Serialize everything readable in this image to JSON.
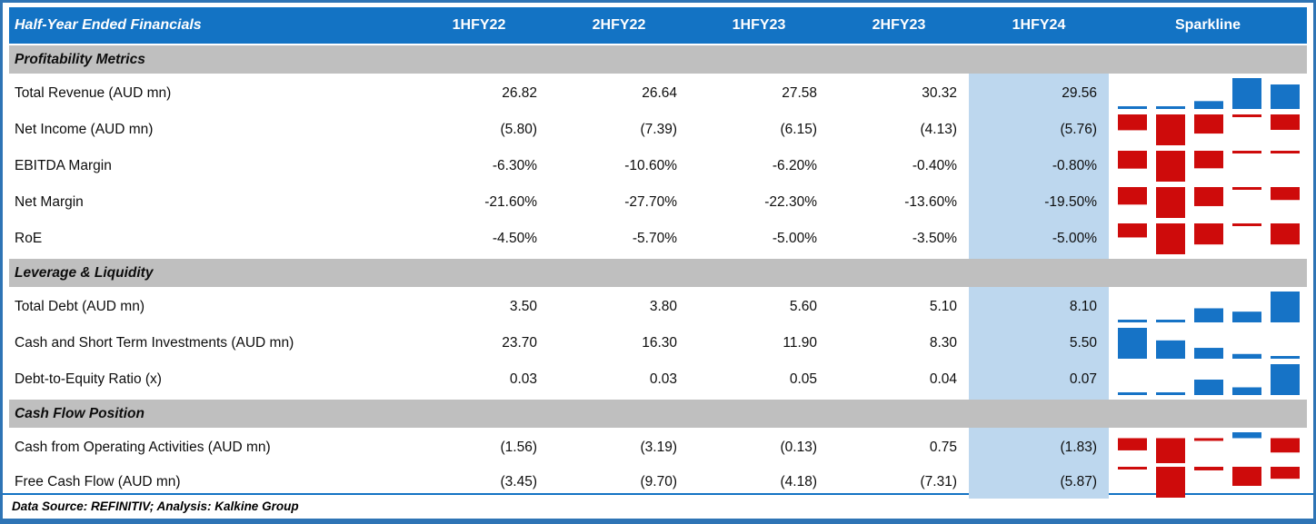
{
  "table": {
    "title": "Half-Year Ended Financials",
    "columns": [
      "1HFY22",
      "2HFY22",
      "1HFY23",
      "2HFY23",
      "1HFY24"
    ],
    "sparkline_label": "Sparkline",
    "highlighted_column": "1HFY24",
    "sections": [
      {
        "label": "Profitability Metrics",
        "rows": [
          {
            "series": 0,
            "values": [
              "26.82",
              "26.64",
              "27.58",
              "30.32",
              "29.56"
            ]
          },
          {
            "series": 1,
            "values": [
              "(5.80)",
              "(7.39)",
              "(6.15)",
              "(4.13)",
              "(5.76)"
            ]
          },
          {
            "series": 2,
            "values": [
              "-6.30%",
              "-10.60%",
              "-6.20%",
              "-0.40%",
              "-0.80%"
            ]
          },
          {
            "series": 3,
            "values": [
              "-21.60%",
              "-27.70%",
              "-22.30%",
              "-13.60%",
              "-19.50%"
            ]
          },
          {
            "series": 4,
            "values": [
              "-4.50%",
              "-5.70%",
              "-5.00%",
              "-3.50%",
              "-5.00%"
            ]
          }
        ]
      },
      {
        "label": "Leverage & Liquidity",
        "rows": [
          {
            "series": 5,
            "values": [
              "3.50",
              "3.80",
              "5.60",
              "5.10",
              "8.10"
            ]
          },
          {
            "series": 6,
            "values": [
              "23.70",
              "16.30",
              "11.90",
              "8.30",
              "5.50"
            ]
          },
          {
            "series": 7,
            "values": [
              "0.03",
              "0.03",
              "0.05",
              "0.04",
              "0.07"
            ]
          }
        ]
      },
      {
        "label": "Cash Flow Position",
        "rows": [
          {
            "series": 8,
            "values": [
              "(1.56)",
              "(3.19)",
              "(0.13)",
              "0.75",
              "(1.83)"
            ]
          },
          {
            "series": 9,
            "values": [
              "(3.45)",
              "(9.70)",
              "(4.18)",
              "(7.31)",
              "(5.87)"
            ]
          }
        ]
      }
    ]
  },
  "footer": {
    "text": "Data Source: REFINITIV; Analysis: Kalkine Group"
  },
  "colors": {
    "header_blue": "#1373C4",
    "border_blue": "#2E74B5",
    "band_gray": "#BFBFBF",
    "highlight_blue": "#BDD7EE",
    "spark_positive": "#1673C6",
    "spark_negative": "#CE0B0B"
  },
  "chart_data": {
    "type": "table",
    "title": "Half-Year Ended Financials",
    "categories": [
      "1HFY22",
      "2HFY22",
      "1HFY23",
      "2HFY23",
      "1HFY24"
    ],
    "legend_position": "none",
    "sparkline_style": {
      "type": "bar",
      "positive_color": "#1673C6",
      "negative_color": "#CE0B0B",
      "scaling": "row-min-to-max"
    },
    "series": [
      {
        "name": "Total Revenue (AUD mn)",
        "values": [
          26.82,
          26.64,
          27.58,
          30.32,
          29.56
        ]
      },
      {
        "name": "Net Income (AUD mn)",
        "values": [
          -5.8,
          -7.39,
          -6.15,
          -4.13,
          -5.76
        ]
      },
      {
        "name": "EBITDA Margin",
        "unit": "%",
        "values": [
          -6.3,
          -10.6,
          -6.2,
          -0.4,
          -0.8
        ]
      },
      {
        "name": "Net Margin",
        "unit": "%",
        "values": [
          -21.6,
          -27.7,
          -22.3,
          -13.6,
          -19.5
        ]
      },
      {
        "name": "RoE",
        "unit": "%",
        "values": [
          -4.5,
          -5.7,
          -5.0,
          -3.5,
          -5.0
        ]
      },
      {
        "name": "Total Debt (AUD mn)",
        "values": [
          3.5,
          3.8,
          5.6,
          5.1,
          8.1
        ]
      },
      {
        "name": "Cash and Short Term Investments (AUD mn)",
        "values": [
          23.7,
          16.3,
          11.9,
          8.3,
          5.5
        ]
      },
      {
        "name": "Debt-to-Equity Ratio (x)",
        "values": [
          0.03,
          0.03,
          0.05,
          0.04,
          0.07
        ]
      },
      {
        "name": "Cash from Operating Activities (AUD mn)",
        "values": [
          -1.56,
          -3.19,
          -0.13,
          0.75,
          -1.83
        ]
      },
      {
        "name": "Free Cash Flow (AUD mn)",
        "values": [
          -3.45,
          -9.7,
          -4.18,
          -7.31,
          -5.87
        ]
      }
    ]
  }
}
